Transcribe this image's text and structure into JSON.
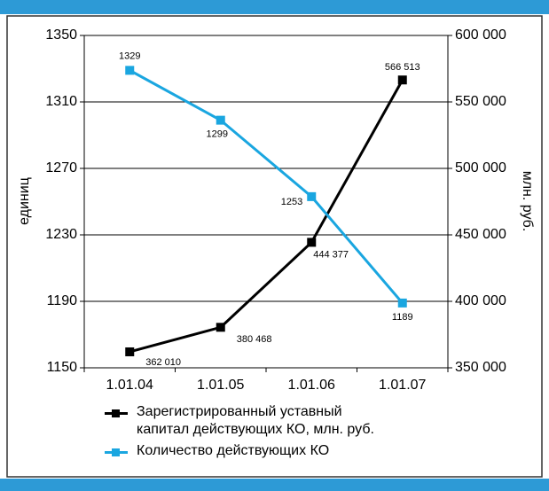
{
  "chart_data": {
    "type": "line",
    "categories": [
      "1.01.04",
      "1.01.05",
      "1.01.06",
      "1.01.07"
    ],
    "y_label": "единиц",
    "y2_label": "млн. руб.",
    "ylim": [
      1150,
      1350
    ],
    "yticks": [
      1150,
      1190,
      1230,
      1270,
      1310,
      1350
    ],
    "y2lim": [
      350000,
      600000
    ],
    "y2ticks": [
      {
        "value": 350000,
        "label": "350 000"
      },
      {
        "value": 400000,
        "label": "400 000"
      },
      {
        "value": 450000,
        "label": "450 000"
      },
      {
        "value": 500000,
        "label": "500 000"
      },
      {
        "value": 550000,
        "label": "550 000"
      },
      {
        "value": 600000,
        "label": "600 000"
      }
    ],
    "grid": true,
    "legend": "bottom",
    "series": [
      {
        "name": "Зарегистрированный уставный капитал действующих КО, млн. руб.",
        "color": "#000000",
        "axis": "y2",
        "values": [
          362010,
          380468,
          444377,
          566513
        ],
        "value_labels": [
          "362 010",
          "380 468",
          "444 377",
          "566 513"
        ]
      },
      {
        "name": "Количество действующих КО",
        "color": "#1aa6e0",
        "values": [
          1329,
          1299,
          1253,
          1189
        ]
      }
    ]
  }
}
